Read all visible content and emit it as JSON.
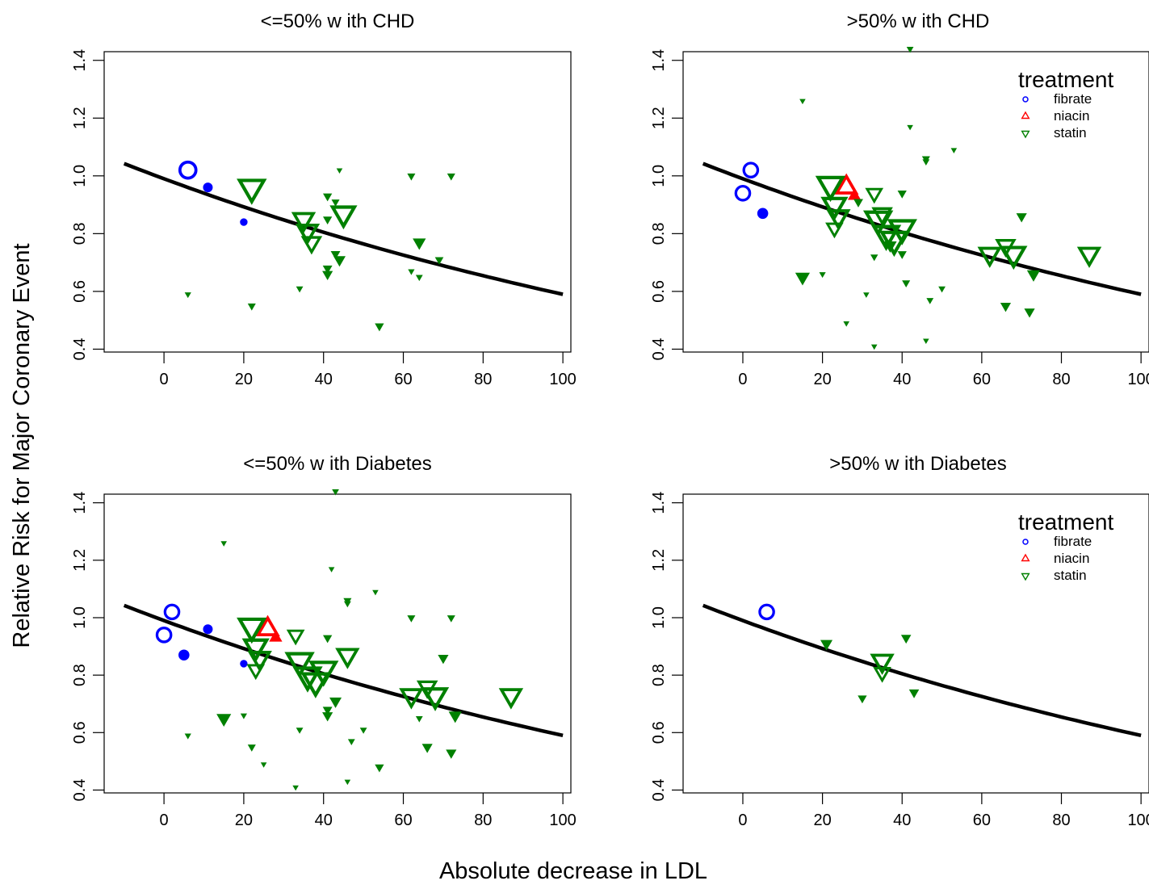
{
  "figure": {
    "ylabel": "Relative Risk for Major Coronary Event",
    "xlabel": "Absolute decrease in LDL"
  },
  "legend_title": "treatment",
  "legend_items": [
    {
      "label": "fibrate",
      "color": "#0000ff",
      "marker": "circle"
    },
    {
      "label": "niacin",
      "color": "#ff0000",
      "marker": "triangle-up"
    },
    {
      "label": "statin",
      "color": "#008000",
      "marker": "triangle-down"
    }
  ],
  "colors": {
    "fibrate": "#0000ff",
    "niacin": "#ff0000",
    "statin": "#008000",
    "fit_line": "#000000"
  },
  "chart_data": [
    {
      "type": "scatter",
      "title": "<=50% w ith CHD",
      "xlim": [
        -15,
        102
      ],
      "ylim": [
        0.39,
        1.43
      ],
      "xticks": [
        "0",
        "20",
        "40",
        "60",
        "80",
        "100"
      ],
      "yticks": [
        "0.4",
        "0.6",
        "0.8",
        "1.0",
        "1.2",
        "1.4"
      ],
      "legend": false,
      "fit_line": {
        "x": [
          -10,
          100
        ],
        "y_at_0": 0.99,
        "y_at_100": 0.59
      },
      "points": [
        {
          "x": 6,
          "y": 1.02,
          "treatment": "fibrate",
          "size": 3
        },
        {
          "x": 11,
          "y": 0.96,
          "treatment": "fibrate",
          "size": 1
        },
        {
          "x": 20,
          "y": 0.84,
          "treatment": "fibrate",
          "size": 0.5
        },
        {
          "x": 22,
          "y": 0.96,
          "treatment": "statin",
          "size": 4
        },
        {
          "x": 22,
          "y": 0.55,
          "treatment": "statin",
          "size": 0.5
        },
        {
          "x": 6,
          "y": 0.59,
          "treatment": "statin",
          "size": 0.2
        },
        {
          "x": 35,
          "y": 0.85,
          "treatment": "statin",
          "size": 3
        },
        {
          "x": 36,
          "y": 0.81,
          "treatment": "statin",
          "size": 3
        },
        {
          "x": 37,
          "y": 0.77,
          "treatment": "statin",
          "size": 2.5
        },
        {
          "x": 45,
          "y": 0.87,
          "treatment": "statin",
          "size": 3.5
        },
        {
          "x": 41,
          "y": 0.93,
          "treatment": "statin",
          "size": 0.7
        },
        {
          "x": 43,
          "y": 0.91,
          "treatment": "statin",
          "size": 0.5
        },
        {
          "x": 41,
          "y": 0.85,
          "treatment": "statin",
          "size": 0.7
        },
        {
          "x": 43,
          "y": 0.73,
          "treatment": "statin",
          "size": 0.8
        },
        {
          "x": 44,
          "y": 0.71,
          "treatment": "statin",
          "size": 1.3
        },
        {
          "x": 41,
          "y": 0.68,
          "treatment": "statin",
          "size": 0.8
        },
        {
          "x": 41,
          "y": 0.66,
          "treatment": "statin",
          "size": 1
        },
        {
          "x": 34,
          "y": 0.61,
          "treatment": "statin",
          "size": 0.3
        },
        {
          "x": 44,
          "y": 1.02,
          "treatment": "statin",
          "size": 0.1
        },
        {
          "x": 54,
          "y": 0.48,
          "treatment": "statin",
          "size": 0.7
        },
        {
          "x": 62,
          "y": 1.0,
          "treatment": "statin",
          "size": 0.5
        },
        {
          "x": 72,
          "y": 1.0,
          "treatment": "statin",
          "size": 0.5
        },
        {
          "x": 64,
          "y": 0.77,
          "treatment": "statin",
          "size": 1.5
        },
        {
          "x": 62,
          "y": 0.67,
          "treatment": "statin",
          "size": 0.2
        },
        {
          "x": 64,
          "y": 0.65,
          "treatment": "statin",
          "size": 0.3
        },
        {
          "x": 69,
          "y": 0.71,
          "treatment": "statin",
          "size": 0.6
        }
      ]
    },
    {
      "type": "scatter",
      "title": ">50% w ith CHD",
      "xlim": [
        -15,
        102
      ],
      "ylim": [
        0.39,
        1.43
      ],
      "xticks": [
        "0",
        "20",
        "40",
        "60",
        "80",
        "100"
      ],
      "yticks": [
        "0.4",
        "0.6",
        "0.8",
        "1.0",
        "1.2",
        "1.4"
      ],
      "legend": true,
      "fit_line": {
        "x": [
          -10,
          100
        ],
        "y_at_0": 0.99,
        "y_at_100": 0.59
      },
      "points": [
        {
          "x": 2,
          "y": 1.02,
          "treatment": "fibrate",
          "size": 2.5
        },
        {
          "x": 0,
          "y": 0.94,
          "treatment": "fibrate",
          "size": 2.5
        },
        {
          "x": 5,
          "y": 0.87,
          "treatment": "fibrate",
          "size": 1.3
        },
        {
          "x": 26,
          "y": 0.96,
          "treatment": "niacin",
          "size": 3
        },
        {
          "x": 28,
          "y": 0.93,
          "treatment": "niacin",
          "size": 1.5
        },
        {
          "x": 22,
          "y": 0.97,
          "treatment": "statin",
          "size": 4
        },
        {
          "x": 23,
          "y": 0.9,
          "treatment": "statin",
          "size": 3.5
        },
        {
          "x": 24,
          "y": 0.86,
          "treatment": "statin",
          "size": 3
        },
        {
          "x": 23,
          "y": 0.82,
          "treatment": "statin",
          "size": 2
        },
        {
          "x": 34,
          "y": 0.85,
          "treatment": "statin",
          "size": 4
        },
        {
          "x": 36,
          "y": 0.8,
          "treatment": "statin",
          "size": 4
        },
        {
          "x": 38,
          "y": 0.78,
          "treatment": "statin",
          "size": 4
        },
        {
          "x": 40,
          "y": 0.82,
          "treatment": "statin",
          "size": 4
        },
        {
          "x": 33,
          "y": 0.94,
          "treatment": "statin",
          "size": 2
        },
        {
          "x": 35,
          "y": 0.87,
          "treatment": "statin",
          "size": 2.5
        },
        {
          "x": 40,
          "y": 0.94,
          "treatment": "statin",
          "size": 0.7
        },
        {
          "x": 37,
          "y": 0.76,
          "treatment": "statin",
          "size": 1.5
        },
        {
          "x": 40,
          "y": 0.73,
          "treatment": "statin",
          "size": 0.7
        },
        {
          "x": 15,
          "y": 0.65,
          "treatment": "statin",
          "size": 1.8
        },
        {
          "x": 20,
          "y": 0.66,
          "treatment": "statin",
          "size": 0.2
        },
        {
          "x": 29,
          "y": 0.91,
          "treatment": "statin",
          "size": 0.8
        },
        {
          "x": 33,
          "y": 0.72,
          "treatment": "statin",
          "size": 0.4
        },
        {
          "x": 41,
          "y": 0.63,
          "treatment": "statin",
          "size": 0.5
        },
        {
          "x": 31,
          "y": 0.59,
          "treatment": "statin",
          "size": 0.1
        },
        {
          "x": 26,
          "y": 0.49,
          "treatment": "statin",
          "size": 0.1
        },
        {
          "x": 33,
          "y": 0.41,
          "treatment": "statin",
          "size": 0.1
        },
        {
          "x": 15,
          "y": 1.26,
          "treatment": "statin",
          "size": 0.1
        },
        {
          "x": 42,
          "y": 1.44,
          "treatment": "statin",
          "size": 0.3
        },
        {
          "x": 42,
          "y": 1.17,
          "treatment": "statin",
          "size": 0.1
        },
        {
          "x": 46,
          "y": 1.06,
          "treatment": "statin",
          "size": 0.5
        },
        {
          "x": 46,
          "y": 1.05,
          "treatment": "statin",
          "size": 0.3
        },
        {
          "x": 53,
          "y": 1.09,
          "treatment": "statin",
          "size": 0.1
        },
        {
          "x": 47,
          "y": 0.57,
          "treatment": "statin",
          "size": 0.3
        },
        {
          "x": 50,
          "y": 0.61,
          "treatment": "statin",
          "size": 0.3
        },
        {
          "x": 46,
          "y": 0.43,
          "treatment": "statin",
          "size": 0.1
        },
        {
          "x": 62,
          "y": 0.73,
          "treatment": "statin",
          "size": 3
        },
        {
          "x": 66,
          "y": 0.76,
          "treatment": "statin",
          "size": 2.5
        },
        {
          "x": 68,
          "y": 0.73,
          "treatment": "statin",
          "size": 3.5
        },
        {
          "x": 70,
          "y": 0.86,
          "treatment": "statin",
          "size": 1
        },
        {
          "x": 73,
          "y": 0.66,
          "treatment": "statin",
          "size": 1.5
        },
        {
          "x": 66,
          "y": 0.55,
          "treatment": "statin",
          "size": 1
        },
        {
          "x": 72,
          "y": 0.53,
          "treatment": "statin",
          "size": 1
        },
        {
          "x": 87,
          "y": 0.73,
          "treatment": "statin",
          "size": 3
        }
      ]
    },
    {
      "type": "scatter",
      "title": "<=50% w ith Diabetes",
      "xlim": [
        -15,
        102
      ],
      "ylim": [
        0.39,
        1.43
      ],
      "xticks": [
        "0",
        "20",
        "40",
        "60",
        "80",
        "100"
      ],
      "yticks": [
        "0.4",
        "0.6",
        "0.8",
        "1.0",
        "1.2",
        "1.4"
      ],
      "legend": false,
      "fit_line": {
        "x": [
          -10,
          100
        ],
        "y_at_0": 0.99,
        "y_at_100": 0.59
      },
      "points": [
        {
          "x": 2,
          "y": 1.02,
          "treatment": "fibrate",
          "size": 2.5
        },
        {
          "x": 0,
          "y": 0.94,
          "treatment": "fibrate",
          "size": 2.5
        },
        {
          "x": 5,
          "y": 0.87,
          "treatment": "fibrate",
          "size": 1.3
        },
        {
          "x": 11,
          "y": 0.96,
          "treatment": "fibrate",
          "size": 1
        },
        {
          "x": 20,
          "y": 0.84,
          "treatment": "fibrate",
          "size": 0.5
        },
        {
          "x": 26,
          "y": 0.96,
          "treatment": "niacin",
          "size": 3
        },
        {
          "x": 28,
          "y": 0.93,
          "treatment": "niacin",
          "size": 1.5
        },
        {
          "x": 22,
          "y": 0.97,
          "treatment": "statin",
          "size": 4
        },
        {
          "x": 23,
          "y": 0.9,
          "treatment": "statin",
          "size": 3.5
        },
        {
          "x": 24,
          "y": 0.86,
          "treatment": "statin",
          "size": 3
        },
        {
          "x": 23,
          "y": 0.82,
          "treatment": "statin",
          "size": 2
        },
        {
          "x": 34,
          "y": 0.85,
          "treatment": "statin",
          "size": 4
        },
        {
          "x": 36,
          "y": 0.8,
          "treatment": "statin",
          "size": 4
        },
        {
          "x": 38,
          "y": 0.78,
          "treatment": "statin",
          "size": 4
        },
        {
          "x": 40,
          "y": 0.82,
          "treatment": "statin",
          "size": 4
        },
        {
          "x": 33,
          "y": 0.94,
          "treatment": "statin",
          "size": 2
        },
        {
          "x": 46,
          "y": 0.87,
          "treatment": "statin",
          "size": 3
        },
        {
          "x": 41,
          "y": 0.93,
          "treatment": "statin",
          "size": 0.7
        },
        {
          "x": 43,
          "y": 0.71,
          "treatment": "statin",
          "size": 1.3
        },
        {
          "x": 41,
          "y": 0.68,
          "treatment": "statin",
          "size": 0.8
        },
        {
          "x": 41,
          "y": 0.66,
          "treatment": "statin",
          "size": 1
        },
        {
          "x": 15,
          "y": 0.65,
          "treatment": "statin",
          "size": 1.8
        },
        {
          "x": 20,
          "y": 0.66,
          "treatment": "statin",
          "size": 0.2
        },
        {
          "x": 22,
          "y": 0.55,
          "treatment": "statin",
          "size": 0.5
        },
        {
          "x": 6,
          "y": 0.59,
          "treatment": "statin",
          "size": 0.2
        },
        {
          "x": 25,
          "y": 0.49,
          "treatment": "statin",
          "size": 0.1
        },
        {
          "x": 33,
          "y": 0.41,
          "treatment": "statin",
          "size": 0.1
        },
        {
          "x": 34,
          "y": 0.61,
          "treatment": "statin",
          "size": 0.3
        },
        {
          "x": 15,
          "y": 1.26,
          "treatment": "statin",
          "size": 0.1
        },
        {
          "x": 43,
          "y": 1.44,
          "treatment": "statin",
          "size": 0.3
        },
        {
          "x": 42,
          "y": 1.17,
          "treatment": "statin",
          "size": 0.1
        },
        {
          "x": 46,
          "y": 1.06,
          "treatment": "statin",
          "size": 0.5
        },
        {
          "x": 46,
          "y": 1.05,
          "treatment": "statin",
          "size": 0.3
        },
        {
          "x": 53,
          "y": 1.09,
          "treatment": "statin",
          "size": 0.1
        },
        {
          "x": 47,
          "y": 0.57,
          "treatment": "statin",
          "size": 0.3
        },
        {
          "x": 50,
          "y": 0.61,
          "treatment": "statin",
          "size": 0.3
        },
        {
          "x": 46,
          "y": 0.43,
          "treatment": "statin",
          "size": 0.1
        },
        {
          "x": 54,
          "y": 0.48,
          "treatment": "statin",
          "size": 0.7
        },
        {
          "x": 62,
          "y": 1.0,
          "treatment": "statin",
          "size": 0.5
        },
        {
          "x": 72,
          "y": 1.0,
          "treatment": "statin",
          "size": 0.5
        },
        {
          "x": 62,
          "y": 0.73,
          "treatment": "statin",
          "size": 3
        },
        {
          "x": 66,
          "y": 0.76,
          "treatment": "statin",
          "size": 2.5
        },
        {
          "x": 68,
          "y": 0.73,
          "treatment": "statin",
          "size": 3.5
        },
        {
          "x": 70,
          "y": 0.86,
          "treatment": "statin",
          "size": 1
        },
        {
          "x": 73,
          "y": 0.66,
          "treatment": "statin",
          "size": 1.5
        },
        {
          "x": 66,
          "y": 0.55,
          "treatment": "statin",
          "size": 1
        },
        {
          "x": 72,
          "y": 0.53,
          "treatment": "statin",
          "size": 1
        },
        {
          "x": 64,
          "y": 0.65,
          "treatment": "statin",
          "size": 0.3
        },
        {
          "x": 87,
          "y": 0.73,
          "treatment": "statin",
          "size": 3
        }
      ]
    },
    {
      "type": "scatter",
      "title": ">50% w ith Diabetes",
      "xlim": [
        -15,
        102
      ],
      "ylim": [
        0.39,
        1.43
      ],
      "xticks": [
        "0",
        "20",
        "40",
        "60",
        "80",
        "100"
      ],
      "yticks": [
        "0.4",
        "0.6",
        "0.8",
        "1.0",
        "1.2",
        "1.4"
      ],
      "legend": true,
      "fit_line": {
        "x": [
          -10,
          100
        ],
        "y_at_0": 0.99,
        "y_at_100": 0.59
      },
      "points": [
        {
          "x": 6,
          "y": 1.02,
          "treatment": "fibrate",
          "size": 2.5
        },
        {
          "x": 21,
          "y": 0.91,
          "treatment": "statin",
          "size": 1.3
        },
        {
          "x": 35,
          "y": 0.85,
          "treatment": "statin",
          "size": 3
        },
        {
          "x": 35,
          "y": 0.81,
          "treatment": "statin",
          "size": 2
        },
        {
          "x": 30,
          "y": 0.72,
          "treatment": "statin",
          "size": 0.7
        },
        {
          "x": 41,
          "y": 0.93,
          "treatment": "statin",
          "size": 0.9
        },
        {
          "x": 43,
          "y": 0.74,
          "treatment": "statin",
          "size": 0.9
        }
      ]
    }
  ]
}
